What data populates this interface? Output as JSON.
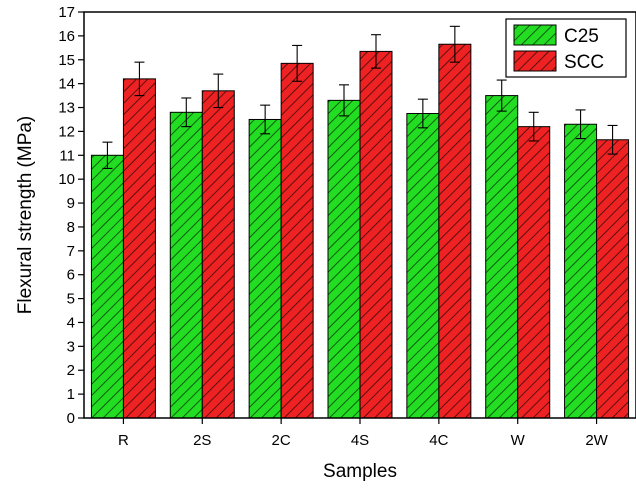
{
  "chart_data": {
    "type": "bar",
    "title": "",
    "xlabel": "Samples",
    "ylabel": "Flexural strength (MPa)",
    "ylim": [
      0,
      17
    ],
    "yticks": [
      0,
      1,
      2,
      3,
      4,
      5,
      6,
      7,
      8,
      9,
      10,
      11,
      12,
      13,
      14,
      15,
      16,
      17
    ],
    "categories": [
      "R",
      "2S",
      "2C",
      "4S",
      "4C",
      "W",
      "2W"
    ],
    "series": [
      {
        "name": "C25",
        "color": "#22dd22",
        "hatch_color": "#0a3a0a",
        "values": [
          11.0,
          12.8,
          12.5,
          13.3,
          12.75,
          13.5,
          12.3
        ],
        "errors": [
          0.55,
          0.6,
          0.6,
          0.65,
          0.6,
          0.65,
          0.6
        ]
      },
      {
        "name": "SCC",
        "color": "#ee2222",
        "hatch_color": "#3a0a0a",
        "values": [
          14.2,
          13.7,
          14.85,
          15.35,
          15.65,
          12.2,
          11.65
        ],
        "errors": [
          0.7,
          0.7,
          0.75,
          0.7,
          0.75,
          0.6,
          0.6
        ]
      }
    ],
    "grid": false,
    "legend_position": "top-right",
    "error_bars": true,
    "hatch": "diagonal"
  }
}
